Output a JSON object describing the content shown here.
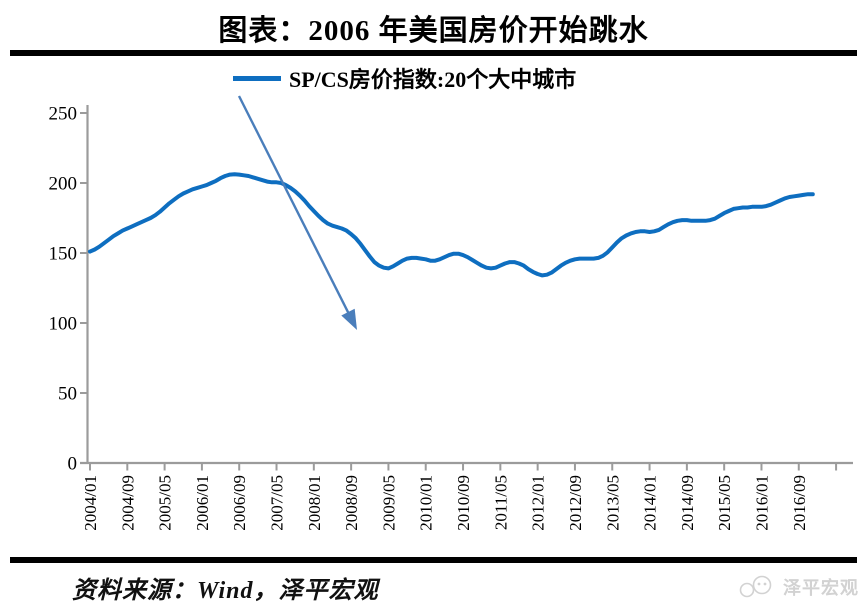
{
  "title": "图表：2006 年美国房价开始跳水",
  "legend": {
    "label": "SP/CS房价指数:20个大中城市"
  },
  "source": {
    "text": "资料来源：Wind，泽平宏观"
  },
  "watermark": {
    "text": "泽平宏观"
  },
  "colors": {
    "series_line": "#0E6EC0",
    "annotation_arrow": "#4A7EBB",
    "axis": "#9B9B9B",
    "divider": "#000000",
    "watermark": "#D2D2D2"
  },
  "annotation_arrow": {
    "from_x": 239,
    "from_y": 96,
    "to_x": 357,
    "to_y": 330
  },
  "chart_data": {
    "type": "line",
    "title": "图表：2006 年美国房价开始跳水",
    "xlabel": "",
    "ylabel": "",
    "x_start": "2004/01",
    "x_end": "2016/12",
    "frequency": "monthly",
    "x_tick_labels": [
      "2004/01",
      "2004/09",
      "2005/05",
      "2006/01",
      "2006/09",
      "2007/05",
      "2008/01",
      "2008/09",
      "2009/05",
      "2010/01",
      "2010/09",
      "2011/05",
      "2012/01",
      "2012/09",
      "2013/05",
      "2014/01",
      "2014/09",
      "2015/05",
      "2016/01",
      "2016/09"
    ],
    "y_ticks": [
      0,
      50,
      100,
      150,
      200,
      250
    ],
    "ylim": [
      0,
      250
    ],
    "grid": false,
    "legend_position": "top",
    "annotation": "arrow from legend pointing to the 2007-2009 price collapse",
    "series": [
      {
        "name": "SP/CS房价指数:20个大中城市",
        "values": [
          151,
          152.5,
          154.5,
          157,
          159.5,
          162,
          164,
          166,
          167.5,
          169,
          170.5,
          172,
          173.5,
          175,
          177,
          179.5,
          182.5,
          185.5,
          188,
          190.5,
          192.5,
          194,
          195.5,
          196.5,
          197.5,
          198.5,
          200,
          201.5,
          203.5,
          205,
          206,
          206.3,
          206,
          205.5,
          205,
          204,
          203,
          202,
          201,
          200.5,
          200.5,
          200,
          198.5,
          196.5,
          194,
          191,
          187.5,
          183.5,
          180,
          176.5,
          173.5,
          171,
          169.5,
          168.5,
          167.5,
          166,
          163.5,
          160.5,
          156.5,
          152,
          147.5,
          143.5,
          141,
          139.5,
          139,
          140.5,
          142.5,
          144.5,
          146,
          146.5,
          146.5,
          146,
          145.5,
          144.5,
          144.5,
          145.5,
          147,
          148.5,
          149.5,
          149.5,
          148.5,
          147,
          145,
          143,
          141,
          139.5,
          139,
          139.5,
          141,
          142.5,
          143.5,
          143.5,
          142.5,
          141,
          138.5,
          136.5,
          135,
          134,
          134.5,
          136,
          138.5,
          141,
          143,
          144.5,
          145.5,
          146,
          146,
          146,
          146,
          146.5,
          148,
          150.5,
          154,
          157.5,
          160.5,
          162.5,
          164,
          165,
          165.5,
          165.5,
          165,
          165.5,
          166.5,
          168.5,
          170.5,
          172,
          173,
          173.5,
          173.5,
          173,
          173,
          173,
          173,
          173.5,
          174.5,
          176.5,
          178.5,
          180,
          181.5,
          182,
          182.5,
          182.5,
          183,
          183,
          183,
          183.5,
          184.5,
          186,
          187.5,
          189,
          190,
          190.5,
          191,
          191.5,
          192,
          192
        ]
      }
    ]
  }
}
